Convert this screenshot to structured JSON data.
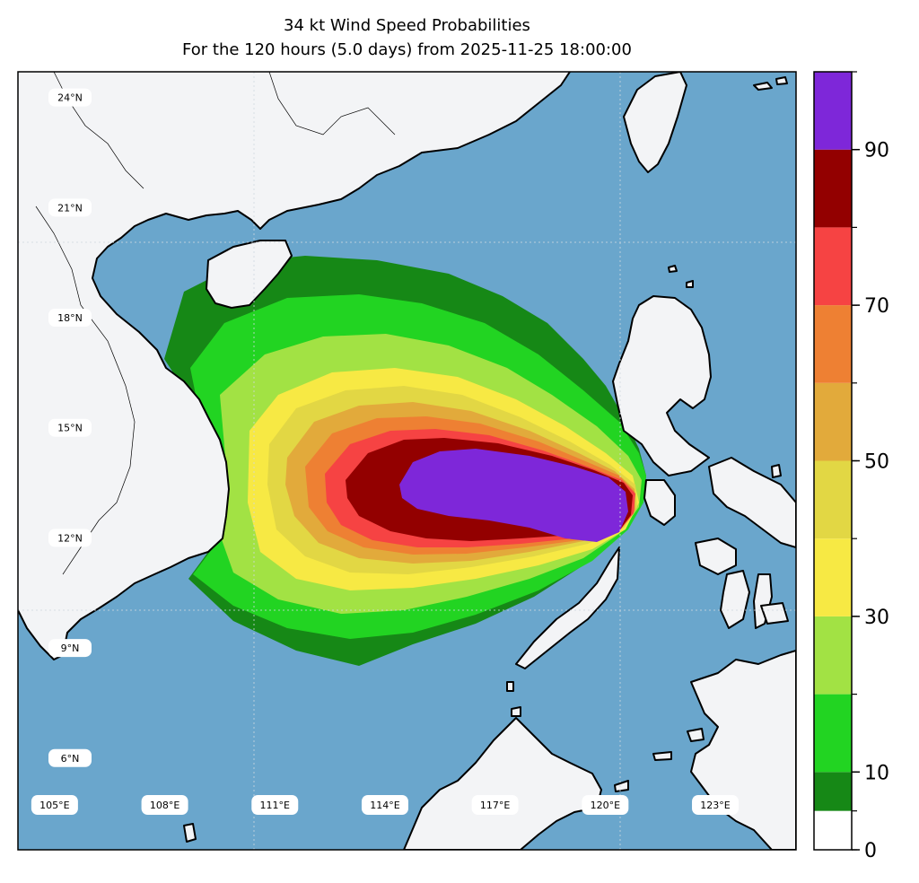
{
  "title": {
    "line1": "34 kt Wind Speed Probabilities",
    "line2": "For the 120 hours (5.0 days) from 2025-11-25 18:00:00"
  },
  "map": {
    "extent": {
      "lon_min": 104,
      "lon_max": 125.2,
      "lat_min": 3.5,
      "lat_max": 24.7
    },
    "ocean_color": "#6aa6cc",
    "land_color": "#f3f4f6",
    "lat_labels": [
      "24°N",
      "21°N",
      "18°N",
      "15°N",
      "12°N",
      "9°N",
      "6°N"
    ],
    "lat_values": [
      24,
      21,
      18,
      15,
      12,
      9,
      6
    ],
    "lon_labels": [
      "105°E",
      "108°E",
      "111°E",
      "114°E",
      "117°E",
      "120°E",
      "123°E"
    ],
    "lon_values": [
      105,
      108,
      111,
      114,
      117,
      120,
      123
    ]
  },
  "colorbar": {
    "ticks": [
      "0",
      "10",
      "30",
      "50",
      "70",
      "90"
    ],
    "tick_values": [
      0,
      10,
      30,
      50,
      70,
      90
    ],
    "bins": [
      {
        "from": 0,
        "to": 5,
        "color": "#ffffff"
      },
      {
        "from": 5,
        "to": 10,
        "color": "#168816"
      },
      {
        "from": 10,
        "to": 20,
        "color": "#22d422"
      },
      {
        "from": 20,
        "to": 30,
        "color": "#a2e244"
      },
      {
        "from": 30,
        "to": 40,
        "color": "#f7e944"
      },
      {
        "from": 40,
        "to": 50,
        "color": "#e2d744"
      },
      {
        "from": 50,
        "to": 60,
        "color": "#e2aa3b"
      },
      {
        "from": 60,
        "to": 70,
        "color": "#ee8033"
      },
      {
        "from": 70,
        "to": 80,
        "color": "#f64343"
      },
      {
        "from": 80,
        "to": 90,
        "color": "#930000"
      },
      {
        "from": 90,
        "to": 100,
        "color": "#7e27d9"
      }
    ]
  }
}
